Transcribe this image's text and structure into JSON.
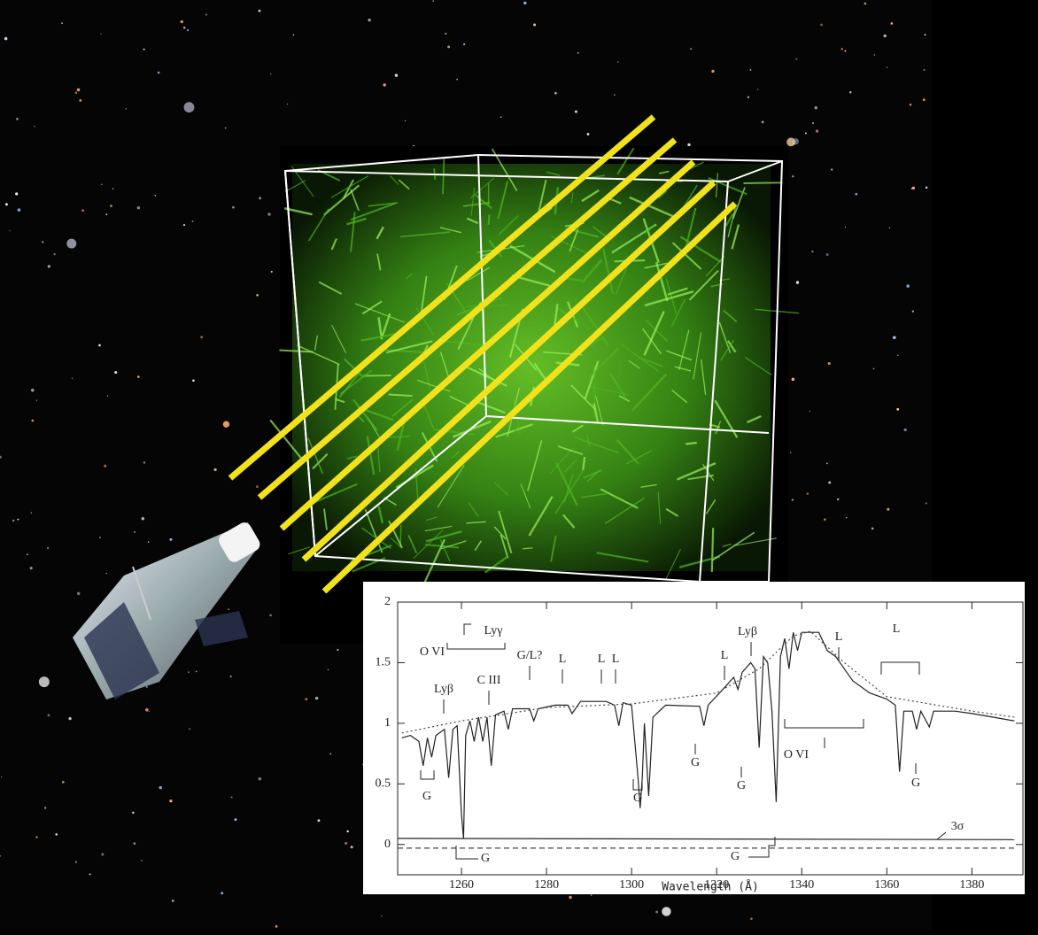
{
  "chart_data": {
    "type": "line",
    "x_label": "Wavelength (Å)",
    "xlim": [
      1245,
      1392
    ],
    "xticks": [
      1260,
      1280,
      1300,
      1320,
      1340,
      1360,
      1380
    ],
    "ylim": [
      -0.25,
      2
    ],
    "yticks": [
      0,
      0.5,
      1,
      1.5,
      2
    ],
    "series": [
      {
        "style": "solid",
        "color": "#222222",
        "x": [
          1246,
          1248,
          1250,
          1251,
          1252,
          1253,
          1254,
          1256,
          1257,
          1258,
          1259,
          1260,
          1260.5,
          1261,
          1262,
          1263,
          1264,
          1265,
          1266,
          1267,
          1268,
          1270,
          1271,
          1272,
          1276,
          1277,
          1278,
          1282,
          1285,
          1286,
          1288,
          1294,
          1296,
          1297,
          1298,
          1300,
          1301.5,
          1302,
          1302.5,
          1303,
          1304,
          1305,
          1308,
          1316,
          1317,
          1318,
          1322,
          1324,
          1325,
          1326,
          1328,
          1329,
          1330,
          1331,
          1332,
          1333,
          1334,
          1335,
          1336,
          1337,
          1338,
          1339,
          1340,
          1344,
          1346,
          1348,
          1350,
          1352,
          1356,
          1360,
          1362,
          1363,
          1364,
          1366,
          1367,
          1368,
          1370,
          1371,
          1376,
          1380,
          1385,
          1390
        ],
        "values": [
          0.88,
          0.9,
          0.85,
          0.65,
          0.88,
          0.72,
          0.9,
          0.95,
          0.55,
          0.95,
          0.98,
          0.25,
          0.05,
          0.9,
          1.02,
          0.85,
          1.05,
          0.85,
          1.05,
          0.65,
          1.07,
          1.1,
          0.95,
          1.12,
          1.12,
          1.02,
          1.12,
          1.15,
          1.15,
          1.08,
          1.18,
          1.18,
          1.15,
          0.98,
          1.17,
          1.15,
          0.55,
          0.3,
          0.55,
          1.0,
          0.4,
          1.05,
          1.15,
          1.14,
          0.98,
          1.15,
          1.3,
          1.38,
          1.28,
          1.42,
          1.5,
          1.45,
          0.8,
          1.55,
          1.5,
          1.1,
          0.35,
          1.55,
          1.7,
          1.45,
          1.75,
          1.6,
          1.75,
          1.75,
          1.6,
          1.55,
          1.45,
          1.35,
          1.25,
          1.2,
          1.15,
          0.6,
          1.1,
          1.1,
          0.95,
          1.1,
          0.97,
          1.1,
          1.1,
          1.08,
          1.05,
          1.02
        ]
      },
      {
        "style": "dotted",
        "color": "#444444",
        "x": [
          1246,
          1260,
          1280,
          1300,
          1320,
          1330,
          1338,
          1342,
          1350,
          1360,
          1380,
          1390
        ],
        "values": [
          0.92,
          1.02,
          1.13,
          1.16,
          1.25,
          1.45,
          1.72,
          1.76,
          1.5,
          1.22,
          1.1,
          1.05
        ]
      },
      {
        "style": "solid",
        "color": "#222222",
        "x": [
          1245,
          1390
        ],
        "values": [
          0.05,
          0.04
        ]
      },
      {
        "style": "dashed",
        "color": "#444444",
        "x": [
          1245,
          1390
        ],
        "values": [
          -0.03,
          -0.03
        ]
      }
    ],
    "annotations": [
      "O VI",
      "Lyγ",
      "C III",
      "G/L?",
      "Lyβ",
      "L",
      "L",
      "L",
      "L",
      "Lyβ",
      "L",
      "L",
      "G",
      "G",
      "G",
      "G",
      "G",
      "G",
      "O VI",
      "G",
      "3σ"
    ]
  }
}
